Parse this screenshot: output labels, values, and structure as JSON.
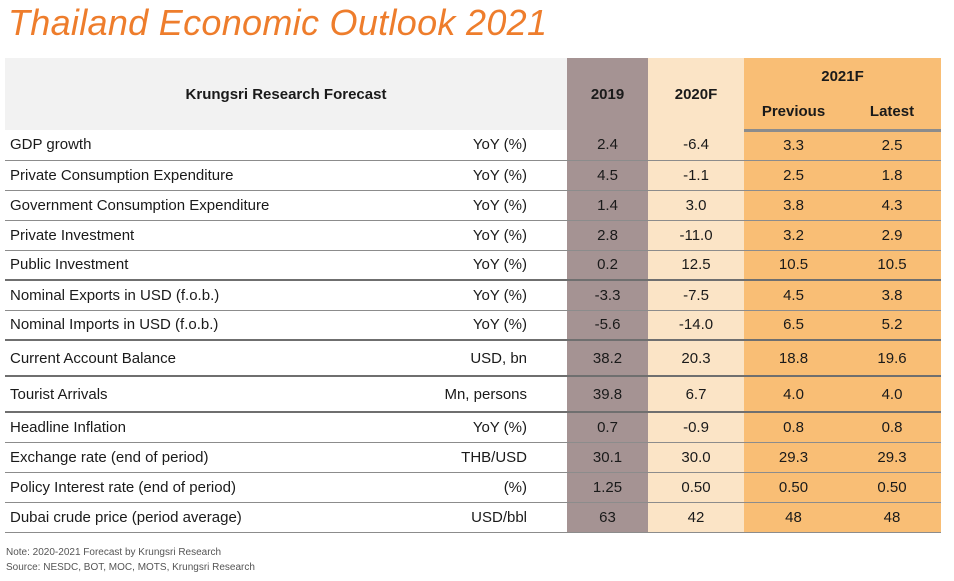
{
  "title": "Thailand Economic Outlook 2021",
  "chart_data": {
    "type": "table",
    "header": {
      "forecast_label": "Krungsri Research Forecast",
      "col_2019": "2019",
      "col_2020": "2020F",
      "col_2021": "2021F",
      "col_previous": "Previous",
      "col_latest": "Latest"
    },
    "rows": [
      {
        "indicator": "GDP growth",
        "unit": "YoY (%)",
        "y2019": "2.4",
        "y2020": "-6.4",
        "previous": "3.3",
        "latest": "2.5"
      },
      {
        "indicator": "Private Consumption Expenditure",
        "unit": "YoY (%)",
        "y2019": "4.5",
        "y2020": "-1.1",
        "previous": "2.5",
        "latest": "1.8"
      },
      {
        "indicator": "Government Consumption Expenditure",
        "unit": "YoY (%)",
        "y2019": "1.4",
        "y2020": "3.0",
        "previous": "3.8",
        "latest": "4.3"
      },
      {
        "indicator": "Private Investment",
        "unit": "YoY (%)",
        "y2019": "2.8",
        "y2020": "-11.0",
        "previous": "3.2",
        "latest": "2.9"
      },
      {
        "indicator": "Public Investment",
        "unit": "YoY (%)",
        "y2019": "0.2",
        "y2020": "12.5",
        "previous": "10.5",
        "latest": "10.5"
      },
      {
        "indicator": "Nominal Exports in USD (f.o.b.)",
        "unit": "YoY (%)",
        "y2019": "-3.3",
        "y2020": "-7.5",
        "previous": "4.5",
        "latest": "3.8"
      },
      {
        "indicator": "Nominal Imports in USD (f.o.b.)",
        "unit": "YoY (%)",
        "y2019": "-5.6",
        "y2020": "-14.0",
        "previous": "6.5",
        "latest": "5.2"
      },
      {
        "indicator": "Current Account Balance",
        "unit": "USD, bn",
        "y2019": "38.2",
        "y2020": "20.3",
        "previous": "18.8",
        "latest": "19.6"
      },
      {
        "indicator": "Tourist Arrivals",
        "unit": "Mn, persons",
        "y2019": "39.8",
        "y2020": "6.7",
        "previous": "4.0",
        "latest": "4.0"
      },
      {
        "indicator": "Headline Inflation",
        "unit": "YoY (%)",
        "y2019": "0.7",
        "y2020": "-0.9",
        "previous": "0.8",
        "latest": "0.8"
      },
      {
        "indicator": "Exchange rate (end of period)",
        "unit": "THB/USD",
        "y2019": "30.1",
        "y2020": "30.0",
        "previous": "29.3",
        "latest": "29.3"
      },
      {
        "indicator": "Policy Interest rate (end of period)",
        "unit": "(%)",
        "y2019": "1.25",
        "y2020": "0.50",
        "previous": "0.50",
        "latest": "0.50"
      },
      {
        "indicator": "Dubai crude price (period average)",
        "unit": "USD/bbl",
        "y2019": "63",
        "y2020": "42",
        "previous": "48",
        "latest": "48"
      }
    ]
  },
  "notes": {
    "note": "Note: 2020-2021 Forecast by Krungsri Research",
    "source": "Source: NESDC, BOT, MOC, MOTS, Krungsri Research"
  },
  "colors": {
    "title": "#ee7d2c",
    "col_2019": "#a59393",
    "col_2020": "#fbe4c6",
    "col_2021": "#f9be75",
    "header_bg": "#f2f2f2"
  }
}
